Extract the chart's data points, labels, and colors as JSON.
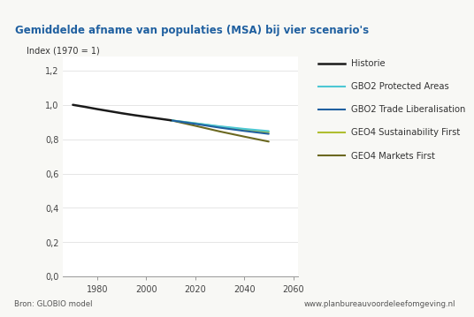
{
  "title": "Gemiddelde afname van populaties (MSA) bij vier scenario's",
  "title_bg": "#daeef8",
  "ylabel": "Index (1970 = 1)",
  "footer_left": "Bron: GLOBIO model",
  "footer_right": "www.planbureauvoordeleefomgeving.nl",
  "xlim": [
    1966,
    2062
  ],
  "ylim": [
    0.0,
    1.28
  ],
  "yticks": [
    0.0,
    0.2,
    0.4,
    0.6,
    0.8,
    1.0,
    1.2
  ],
  "ytick_labels": [
    "0,0",
    "0,2",
    "0,4",
    "0,6",
    "0,8",
    "1,0",
    "1,2"
  ],
  "xticks": [
    1980,
    2000,
    2020,
    2040,
    2060
  ],
  "series": [
    {
      "name": "Historie",
      "x": [
        1970,
        1975,
        1980,
        1985,
        1990,
        1995,
        2000,
        2005,
        2010
      ],
      "y": [
        1.0,
        0.988,
        0.975,
        0.963,
        0.951,
        0.94,
        0.93,
        0.92,
        0.91
      ],
      "color": "#1a1a1a",
      "lw": 1.8,
      "zorder": 5
    },
    {
      "name": "GBO2 Protected Areas",
      "x": [
        2010,
        2020,
        2030,
        2040,
        2050
      ],
      "y": [
        0.91,
        0.893,
        0.875,
        0.86,
        0.847
      ],
      "color": "#4dc8d4",
      "lw": 1.5,
      "zorder": 4
    },
    {
      "name": "GBO2 Trade Liberalisation",
      "x": [
        2010,
        2020,
        2030,
        2040,
        2050
      ],
      "y": [
        0.91,
        0.889,
        0.867,
        0.848,
        0.831
      ],
      "color": "#2060a0",
      "lw": 1.5,
      "zorder": 4
    },
    {
      "name": "GEO4 Sustainability First",
      "x": [
        2010,
        2020,
        2030,
        2040,
        2050
      ],
      "y": [
        0.91,
        0.892,
        0.873,
        0.856,
        0.84
      ],
      "color": "#b0be30",
      "lw": 1.5,
      "zorder": 3
    },
    {
      "name": "GEO4 Markets First",
      "x": [
        2010,
        2020,
        2030,
        2040,
        2050
      ],
      "y": [
        0.91,
        0.878,
        0.845,
        0.815,
        0.786
      ],
      "color": "#6b6820",
      "lw": 1.5,
      "zorder": 3
    }
  ],
  "background_color": "#f8f8f5",
  "plot_bg": "#ffffff",
  "grid_color": "#e0e0e0",
  "title_color": "#2060a0",
  "title_fontsize": 8.5,
  "tick_fontsize": 7.0,
  "legend_fontsize": 7.2,
  "footer_fontsize": 6.2
}
